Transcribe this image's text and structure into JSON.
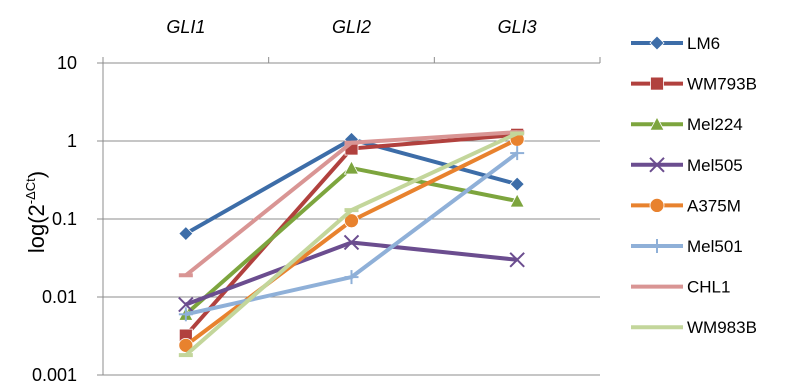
{
  "chart_data": {
    "type": "line",
    "yscale": "log",
    "ylim": [
      0.001,
      10
    ],
    "yticks": [
      "0.001",
      "0.01",
      "0.1",
      "1",
      "10"
    ],
    "ytick_values": [
      0.001,
      0.01,
      0.1,
      1,
      10
    ],
    "ylabel_main": "log(2",
    "ylabel_sup": "-ΔCt",
    "ylabel_close": ")",
    "categories": [
      "GLI1",
      "GLI2",
      "GLI3"
    ],
    "grid": "horizontal",
    "legend_position": "right",
    "series": [
      {
        "name": "LM6",
        "values": [
          0.065,
          1.05,
          0.28
        ],
        "color": "#3d6da8",
        "marker": "diamond"
      },
      {
        "name": "WM793B",
        "values": [
          0.0032,
          0.8,
          1.2
        ],
        "color": "#b1413e",
        "marker": "square"
      },
      {
        "name": "Mel224",
        "values": [
          0.006,
          0.45,
          0.17
        ],
        "color": "#7da53e",
        "marker": "triangle"
      },
      {
        "name": "Mel505",
        "values": [
          0.008,
          0.05,
          0.03
        ],
        "color": "#6b4d8f",
        "marker": "x"
      },
      {
        "name": "A375M",
        "values": [
          0.0024,
          0.095,
          1.05
        ],
        "color": "#e8822e",
        "marker": "circle"
      },
      {
        "name": "Mel501",
        "values": [
          0.006,
          0.018,
          0.7
        ],
        "color": "#8fb0d8",
        "marker": "plus"
      },
      {
        "name": "CHL1",
        "values": [
          0.019,
          0.95,
          1.3
        ],
        "color": "#d99594",
        "marker": "dash"
      },
      {
        "name": "WM983B",
        "values": [
          0.0018,
          0.13,
          1.25
        ],
        "color": "#c3d69b",
        "marker": "dash"
      }
    ]
  }
}
